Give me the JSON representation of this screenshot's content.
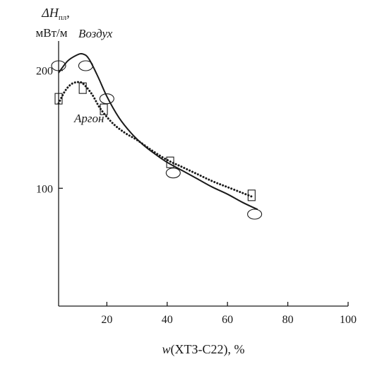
{
  "chart_data": {
    "type": "line",
    "ylabel_line1": "ΔH",
    "ylabel_subscript": "пл",
    "ylabel_comma": ",",
    "ylabel_line2": "мВт/м",
    "xlabel_var": "w",
    "xlabel_rest": "(ХТЗ-С22), %",
    "xlim": [
      4,
      100
    ],
    "ylim": [
      0,
      225
    ],
    "xticks": [
      20,
      40,
      60,
      80,
      100
    ],
    "yticks": [
      100,
      200
    ],
    "grid": false,
    "series": [
      {
        "name": "Воздух",
        "style": "solid",
        "marker": "ellipse",
        "curve": [
          [
            4,
            198
          ],
          [
            7,
            208
          ],
          [
            10,
            213
          ],
          [
            12,
            214
          ],
          [
            14,
            210
          ],
          [
            17,
            195
          ],
          [
            20,
            178
          ],
          [
            24,
            160
          ],
          [
            28,
            147
          ],
          [
            32,
            137
          ],
          [
            36,
            129
          ],
          [
            40,
            122
          ],
          [
            45,
            115
          ],
          [
            50,
            108
          ],
          [
            55,
            101
          ],
          [
            60,
            95
          ],
          [
            65,
            88
          ],
          [
            70,
            82
          ]
        ],
        "markers": [
          [
            4,
            204
          ],
          [
            13,
            204
          ],
          [
            20,
            176
          ],
          [
            42,
            113
          ],
          [
            69,
            78
          ]
        ]
      },
      {
        "name": "Аргон",
        "style": "dotted",
        "marker": "square",
        "curve": [
          [
            4,
            172
          ],
          [
            6,
            182
          ],
          [
            8,
            188
          ],
          [
            10,
            190
          ],
          [
            12,
            189
          ],
          [
            15,
            180
          ],
          [
            18,
            167
          ],
          [
            22,
            155
          ],
          [
            26,
            147
          ],
          [
            30,
            141
          ],
          [
            35,
            132
          ],
          [
            40,
            124
          ],
          [
            45,
            118
          ],
          [
            50,
            112
          ],
          [
            55,
            106
          ],
          [
            60,
            101
          ],
          [
            65,
            96
          ],
          [
            68,
            93
          ]
        ],
        "markers": [
          [
            4,
            176
          ],
          [
            12,
            185
          ],
          [
            19,
            167
          ],
          [
            41,
            122
          ],
          [
            68,
            94
          ]
        ]
      }
    ]
  }
}
